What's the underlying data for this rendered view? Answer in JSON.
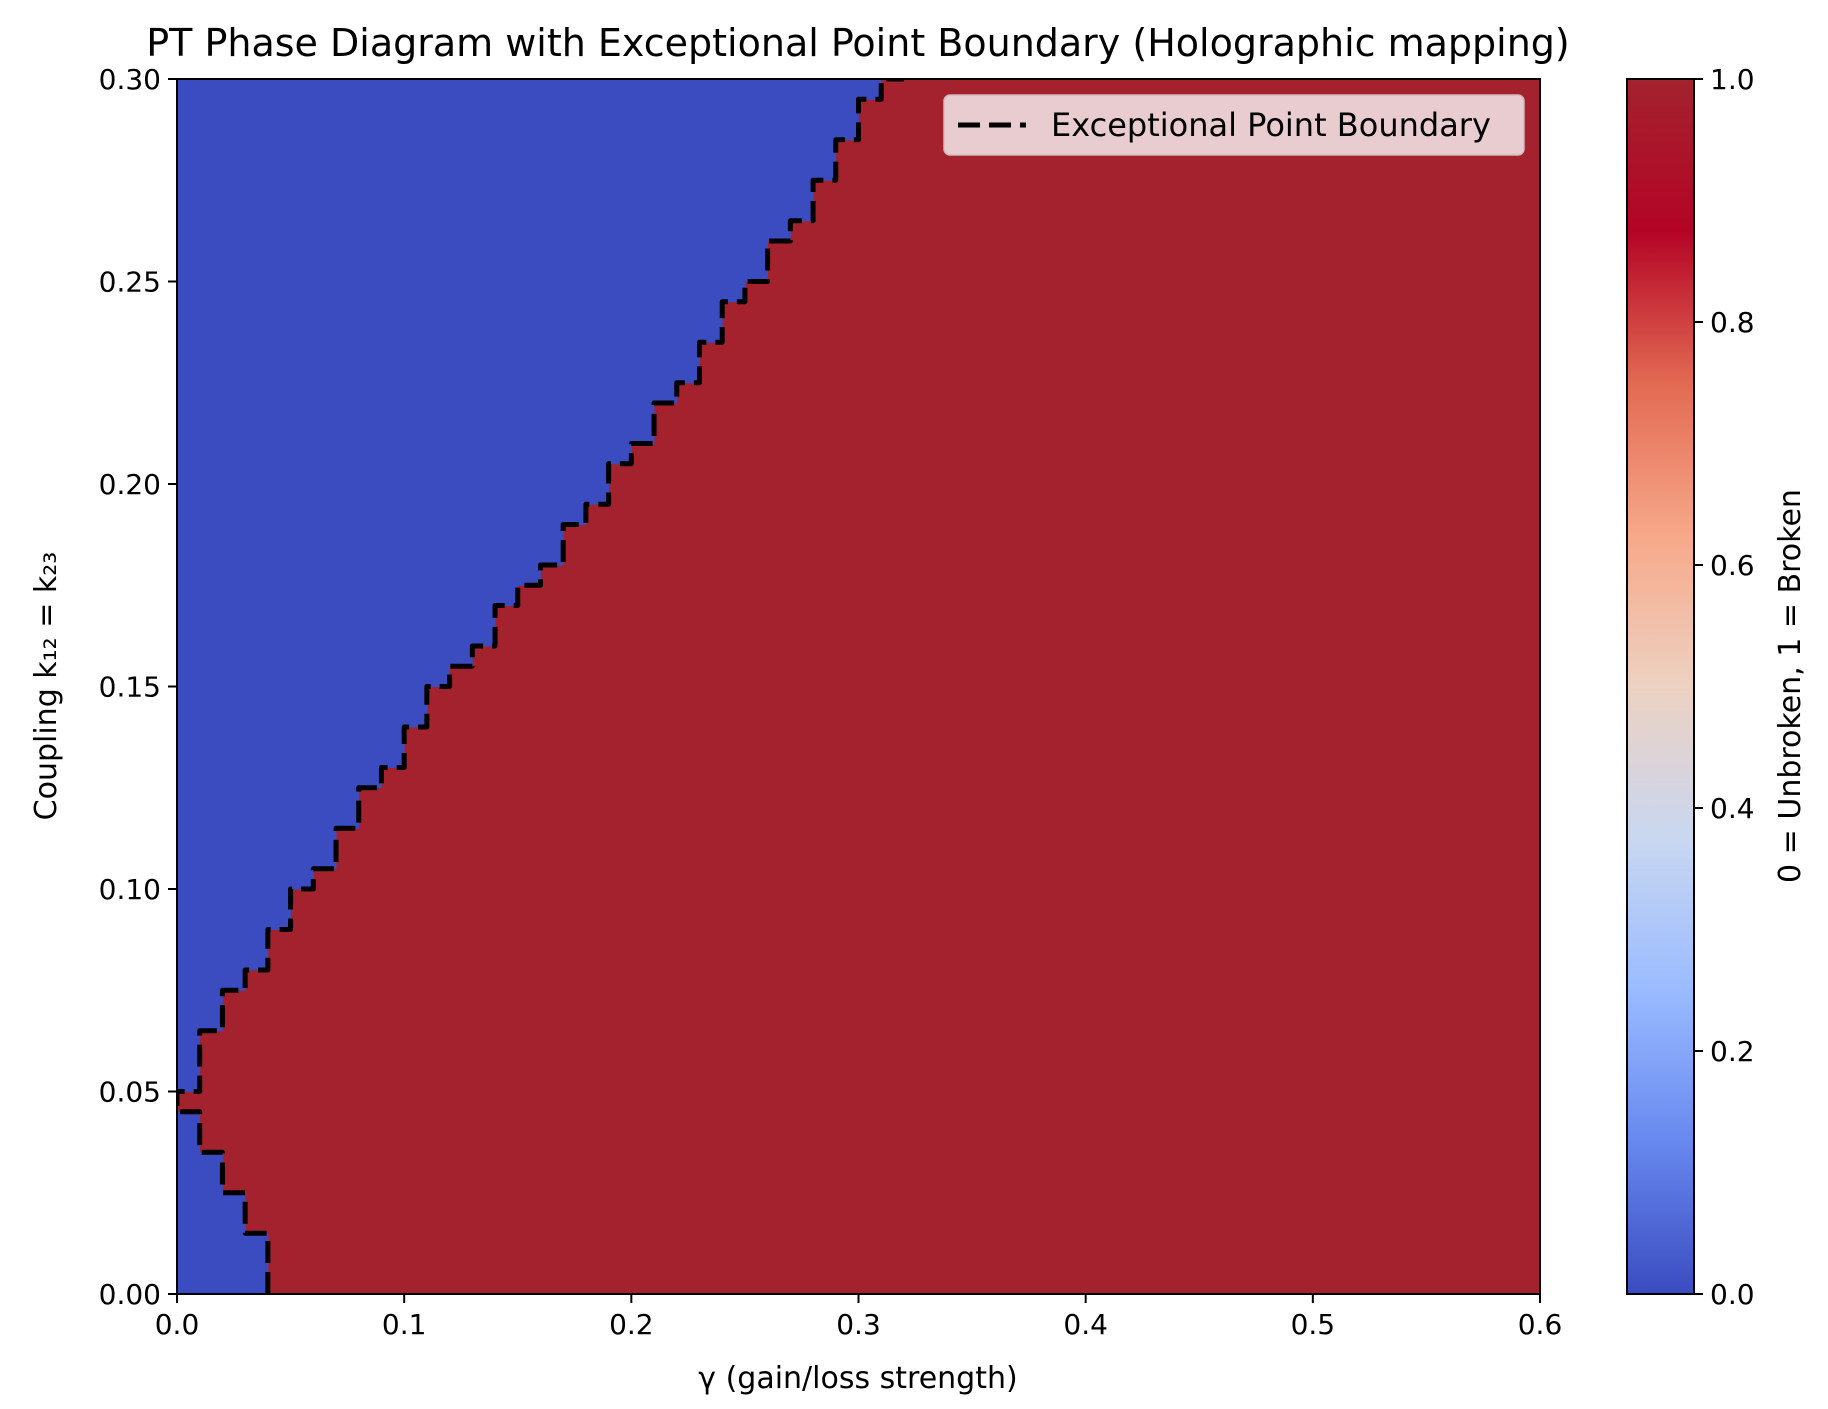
{
  "chart_data": {
    "type": "heatmap",
    "title": "PT Phase Diagram with Exceptional Point Boundary (Holographic mapping)",
    "xlabel": "γ (gain/loss strength)",
    "ylabel": "Coupling k₁₂ = k₂₃",
    "xlim": [
      0.0,
      0.6
    ],
    "ylim": [
      0.0,
      0.3
    ],
    "xticks": [
      0.0,
      0.1,
      0.2,
      0.3,
      0.4,
      0.5,
      0.6
    ],
    "xtick_labels": [
      "0.0",
      "0.1",
      "0.2",
      "0.3",
      "0.4",
      "0.5",
      "0.6"
    ],
    "yticks": [
      0.0,
      0.05,
      0.1,
      0.15,
      0.2,
      0.25,
      0.3
    ],
    "ytick_labels": [
      "0.00",
      "0.05",
      "0.10",
      "0.15",
      "0.20",
      "0.25",
      "0.30"
    ],
    "colormap": "coolwarm",
    "value_range": [
      0,
      1
    ],
    "colors": {
      "unbroken": "#3b4cc0",
      "broken": "#a3222e",
      "boundary": "#000000"
    },
    "colorbar": {
      "label": "0 = Unbroken, 1 = Broken",
      "ticks": [
        0.0,
        0.2,
        0.4,
        0.6,
        0.8,
        1.0
      ],
      "tick_labels": [
        "0.0",
        "0.2",
        "0.4",
        "0.6",
        "0.8",
        "1.0"
      ],
      "stops": [
        "#3b4cc0",
        "#6788ee",
        "#9abbff",
        "#c9d7f0",
        "#edd1c2",
        "#f7a889",
        "#e26952",
        "#b40426",
        "#a3222e"
      ]
    },
    "grid": false,
    "legend": {
      "placement": "top-right",
      "entries": [
        {
          "label": "Exceptional Point Boundary",
          "style": "dashed",
          "color": "#000000"
        }
      ]
    },
    "grid_resolution": {
      "dx": 0.01,
      "dy": 0.005
    },
    "series": [
      {
        "name": "Exceptional Point Boundary",
        "boundary_profile": {
          "k": [
            0.0,
            0.005,
            0.01,
            0.015,
            0.02,
            0.025,
            0.03,
            0.035,
            0.04,
            0.045,
            0.05,
            0.055,
            0.06,
            0.065,
            0.07,
            0.075,
            0.08,
            0.085,
            0.09,
            0.095,
            0.1,
            0.105,
            0.11,
            0.115,
            0.12,
            0.125,
            0.13,
            0.135,
            0.14,
            0.145,
            0.15,
            0.155,
            0.16,
            0.165,
            0.17,
            0.175,
            0.18,
            0.185,
            0.19,
            0.195,
            0.2,
            0.205,
            0.21,
            0.215,
            0.22,
            0.225,
            0.23,
            0.235,
            0.24,
            0.245,
            0.25,
            0.255,
            0.26,
            0.265,
            0.27,
            0.275,
            0.28,
            0.285,
            0.29,
            0.295
          ],
          "gamma_ep": [
            0.04,
            0.04,
            0.04,
            0.03,
            0.03,
            0.02,
            0.02,
            0.01,
            0.01,
            0.0,
            0.01,
            0.01,
            0.01,
            0.02,
            0.02,
            0.03,
            0.04,
            0.04,
            0.05,
            0.05,
            0.06,
            0.07,
            0.07,
            0.08,
            0.08,
            0.09,
            0.1,
            0.1,
            0.11,
            0.11,
            0.12,
            0.13,
            0.14,
            0.14,
            0.15,
            0.16,
            0.17,
            0.17,
            0.18,
            0.19,
            0.19,
            0.2,
            0.21,
            0.21,
            0.22,
            0.23,
            0.23,
            0.24,
            0.24,
            0.25,
            0.26,
            0.26,
            0.27,
            0.28,
            0.28,
            0.29,
            0.29,
            0.3,
            0.3,
            0.31
          ]
        }
      }
    ]
  }
}
